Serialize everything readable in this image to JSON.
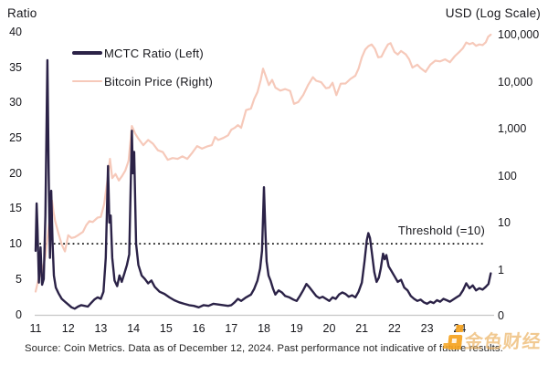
{
  "header": {
    "left_axis_title": "Ratio",
    "right_axis_title": "USD (Log Scale)"
  },
  "legend": [
    {
      "label": "MCTC Ratio (Left)",
      "color": "#2b2247",
      "thickness": 3.5
    },
    {
      "label": "Bitcoin Price (Right)",
      "color": "#f6c9ba",
      "thickness": 2.5
    }
  ],
  "threshold_annotation": "Threshold (=10)",
  "footer": {
    "source_note": "Source: Coin Metrics. Data as of December 12, 2024. Past performance not indicative of future results."
  },
  "watermark": {
    "text": "金色财经",
    "logo_color": "#f5a31f"
  },
  "colors": {
    "ratio_line": "#2b2247",
    "btc_line": "#f6c9ba",
    "baseline": "#c6c6c6",
    "threshold": "#141414",
    "text": "#17171c"
  },
  "chart_data": {
    "type": "line",
    "title": "",
    "x_axis": {
      "tick_labels": [
        "11",
        "12",
        "13",
        "14",
        "15",
        "16",
        "17",
        "18",
        "19",
        "20",
        "21",
        "22",
        "23",
        "24"
      ],
      "range_years": [
        2011,
        2025
      ]
    },
    "left_axis": {
      "title": "Ratio",
      "ticks": [
        40,
        35,
        30,
        25,
        20,
        15,
        10,
        5,
        0
      ],
      "range": [
        0,
        40
      ]
    },
    "right_axis": {
      "title": "USD (Log Scale)",
      "scale": "log",
      "tick_labels": [
        "100,000",
        "10,000",
        "1,000",
        "100",
        "10",
        "1",
        "0"
      ]
    },
    "threshold": {
      "value": 10,
      "label": "Threshold (=10)"
    },
    "grid": "off",
    "legend_position": "top-left",
    "series": [
      {
        "name": "MCTC Ratio (Left)",
        "axis": "left",
        "color": "#2b2247",
        "points": [
          [
            11.0,
            9
          ],
          [
            11.03,
            15.7
          ],
          [
            11.06,
            12
          ],
          [
            11.1,
            4.5
          ],
          [
            11.15,
            9.5
          ],
          [
            11.2,
            4.2
          ],
          [
            11.25,
            5
          ],
          [
            11.3,
            14
          ],
          [
            11.36,
            36
          ],
          [
            11.4,
            20
          ],
          [
            11.44,
            8
          ],
          [
            11.48,
            17.5
          ],
          [
            11.52,
            10
          ],
          [
            11.56,
            5.5
          ],
          [
            11.62,
            3.8
          ],
          [
            11.7,
            3
          ],
          [
            11.8,
            2.2
          ],
          [
            11.9,
            1.8
          ],
          [
            12.0,
            1.4
          ],
          [
            12.1,
            1.0
          ],
          [
            12.2,
            0.8
          ],
          [
            12.3,
            1.1
          ],
          [
            12.4,
            1.3
          ],
          [
            12.5,
            1.2
          ],
          [
            12.6,
            1.1
          ],
          [
            12.7,
            1.6
          ],
          [
            12.8,
            2.1
          ],
          [
            12.9,
            2.4
          ],
          [
            13.0,
            2.2
          ],
          [
            13.08,
            3.2
          ],
          [
            13.15,
            8
          ],
          [
            13.22,
            21
          ],
          [
            13.26,
            13
          ],
          [
            13.3,
            14
          ],
          [
            13.35,
            8
          ],
          [
            13.42,
            4.8
          ],
          [
            13.5,
            4
          ],
          [
            13.57,
            5.5
          ],
          [
            13.64,
            4.6
          ],
          [
            13.72,
            5.8
          ],
          [
            13.8,
            7
          ],
          [
            13.87,
            8.5
          ],
          [
            13.95,
            26
          ],
          [
            13.98,
            20
          ],
          [
            14.02,
            23
          ],
          [
            14.08,
            10
          ],
          [
            14.15,
            7
          ],
          [
            14.25,
            5.5
          ],
          [
            14.35,
            5
          ],
          [
            14.45,
            4.4
          ],
          [
            14.55,
            4.8
          ],
          [
            14.65,
            3.9
          ],
          [
            14.8,
            3.2
          ],
          [
            14.95,
            2.9
          ],
          [
            15.1,
            2.4
          ],
          [
            15.25,
            2.0
          ],
          [
            15.4,
            1.7
          ],
          [
            15.55,
            1.5
          ],
          [
            15.7,
            1.3
          ],
          [
            15.85,
            1.2
          ],
          [
            16.0,
            1.0
          ],
          [
            16.15,
            1.3
          ],
          [
            16.3,
            1.2
          ],
          [
            16.45,
            1.5
          ],
          [
            16.6,
            1.4
          ],
          [
            16.75,
            1.3
          ],
          [
            16.9,
            1.2
          ],
          [
            17.0,
            1.3
          ],
          [
            17.1,
            1.7
          ],
          [
            17.2,
            2.2
          ],
          [
            17.3,
            1.9
          ],
          [
            17.45,
            2.4
          ],
          [
            17.6,
            2.8
          ],
          [
            17.7,
            3.6
          ],
          [
            17.8,
            4.8
          ],
          [
            17.88,
            6.5
          ],
          [
            17.94,
            9
          ],
          [
            18.0,
            18
          ],
          [
            18.04,
            12
          ],
          [
            18.08,
            7.5
          ],
          [
            18.14,
            5.5
          ],
          [
            18.2,
            4.8
          ],
          [
            18.28,
            3.6
          ],
          [
            18.35,
            2.8
          ],
          [
            18.45,
            3.4
          ],
          [
            18.55,
            3.1
          ],
          [
            18.65,
            2.6
          ],
          [
            18.78,
            2.4
          ],
          [
            18.9,
            2.1
          ],
          [
            19.0,
            1.9
          ],
          [
            19.1,
            2.6
          ],
          [
            19.2,
            3.4
          ],
          [
            19.3,
            4.3
          ],
          [
            19.4,
            3.8
          ],
          [
            19.5,
            3.2
          ],
          [
            19.6,
            2.6
          ],
          [
            19.7,
            2.3
          ],
          [
            19.8,
            2.5
          ],
          [
            19.9,
            2.2
          ],
          [
            20.0,
            1.9
          ],
          [
            20.1,
            2.4
          ],
          [
            20.2,
            2.2
          ],
          [
            20.3,
            2.8
          ],
          [
            20.4,
            3.1
          ],
          [
            20.5,
            2.9
          ],
          [
            20.6,
            2.5
          ],
          [
            20.7,
            2.7
          ],
          [
            20.8,
            2.4
          ],
          [
            20.9,
            3.2
          ],
          [
            21.0,
            4.5
          ],
          [
            21.08,
            7.5
          ],
          [
            21.15,
            10.5
          ],
          [
            21.2,
            11.5
          ],
          [
            21.25,
            10.8
          ],
          [
            21.3,
            9
          ],
          [
            21.38,
            6
          ],
          [
            21.45,
            4.6
          ],
          [
            21.52,
            5.2
          ],
          [
            21.58,
            6.5
          ],
          [
            21.65,
            8.6
          ],
          [
            21.7,
            7.8
          ],
          [
            21.75,
            8.4
          ],
          [
            21.82,
            6.8
          ],
          [
            21.9,
            6.2
          ],
          [
            22.0,
            5.4
          ],
          [
            22.1,
            4.6
          ],
          [
            22.2,
            4.9
          ],
          [
            22.3,
            3.8
          ],
          [
            22.4,
            3.4
          ],
          [
            22.5,
            2.6
          ],
          [
            22.6,
            2.2
          ],
          [
            22.7,
            1.9
          ],
          [
            22.8,
            2.1
          ],
          [
            22.9,
            1.7
          ],
          [
            23.0,
            1.5
          ],
          [
            23.1,
            1.8
          ],
          [
            23.2,
            1.6
          ],
          [
            23.3,
            2.0
          ],
          [
            23.4,
            1.8
          ],
          [
            23.5,
            2.2
          ],
          [
            23.6,
            2.0
          ],
          [
            23.7,
            1.8
          ],
          [
            23.8,
            2.1
          ],
          [
            23.9,
            2.4
          ],
          [
            24.0,
            2.7
          ],
          [
            24.1,
            3.4
          ],
          [
            24.2,
            4.4
          ],
          [
            24.3,
            3.7
          ],
          [
            24.4,
            4.1
          ],
          [
            24.5,
            3.4
          ],
          [
            24.6,
            3.7
          ],
          [
            24.7,
            3.5
          ],
          [
            24.8,
            3.9
          ],
          [
            24.88,
            4.3
          ],
          [
            24.95,
            5.8
          ]
        ]
      },
      {
        "name": "Bitcoin Price (Right)",
        "axis": "right",
        "color": "#f6c9ba",
        "points": [
          [
            11.0,
            0.35
          ],
          [
            11.1,
            0.7
          ],
          [
            11.2,
            0.9
          ],
          [
            11.3,
            2
          ],
          [
            11.4,
            8
          ],
          [
            11.5,
            30
          ],
          [
            11.55,
            17
          ],
          [
            11.6,
            11
          ],
          [
            11.7,
            6
          ],
          [
            11.8,
            3.5
          ],
          [
            11.9,
            2.5
          ],
          [
            12.0,
            5.5
          ],
          [
            12.1,
            4.8
          ],
          [
            12.2,
            5.0
          ],
          [
            12.3,
            5.5
          ],
          [
            12.45,
            6.5
          ],
          [
            12.55,
            9
          ],
          [
            12.65,
            11
          ],
          [
            12.75,
            10.5
          ],
          [
            12.9,
            13
          ],
          [
            13.0,
            13.5
          ],
          [
            13.1,
            25
          ],
          [
            13.2,
            80
          ],
          [
            13.28,
            230
          ],
          [
            13.35,
            90
          ],
          [
            13.45,
            110
          ],
          [
            13.55,
            80
          ],
          [
            13.65,
            100
          ],
          [
            13.75,
            130
          ],
          [
            13.85,
            210
          ],
          [
            13.95,
            1150
          ],
          [
            14.05,
            800
          ],
          [
            14.15,
            620
          ],
          [
            14.3,
            450
          ],
          [
            14.45,
            580
          ],
          [
            14.6,
            480
          ],
          [
            14.75,
            350
          ],
          [
            14.9,
            320
          ],
          [
            15.05,
            220
          ],
          [
            15.2,
            240
          ],
          [
            15.35,
            230
          ],
          [
            15.5,
            260
          ],
          [
            15.65,
            230
          ],
          [
            15.8,
            310
          ],
          [
            15.95,
            430
          ],
          [
            16.1,
            380
          ],
          [
            16.25,
            420
          ],
          [
            16.4,
            450
          ],
          [
            16.5,
            670
          ],
          [
            16.6,
            580
          ],
          [
            16.75,
            640
          ],
          [
            16.9,
            730
          ],
          [
            17.0,
            960
          ],
          [
            17.1,
            1050
          ],
          [
            17.2,
            1200
          ],
          [
            17.3,
            1050
          ],
          [
            17.45,
            2500
          ],
          [
            17.6,
            2700
          ],
          [
            17.7,
            4300
          ],
          [
            17.8,
            6000
          ],
          [
            17.9,
            11000
          ],
          [
            17.97,
            19000
          ],
          [
            18.05,
            13500
          ],
          [
            18.15,
            8500
          ],
          [
            18.25,
            11000
          ],
          [
            18.35,
            7500
          ],
          [
            18.5,
            6500
          ],
          [
            18.65,
            7000
          ],
          [
            18.8,
            6400
          ],
          [
            18.92,
            3400
          ],
          [
            19.05,
            3700
          ],
          [
            19.2,
            5200
          ],
          [
            19.35,
            8500
          ],
          [
            19.5,
            12500
          ],
          [
            19.6,
            10500
          ],
          [
            19.75,
            9800
          ],
          [
            19.9,
            7300
          ],
          [
            20.0,
            7500
          ],
          [
            20.1,
            9500
          ],
          [
            20.22,
            5200
          ],
          [
            20.35,
            9100
          ],
          [
            20.5,
            9200
          ],
          [
            20.65,
            11500
          ],
          [
            20.8,
            13500
          ],
          [
            20.9,
            19000
          ],
          [
            21.0,
            33000
          ],
          [
            21.1,
            48000
          ],
          [
            21.2,
            57000
          ],
          [
            21.3,
            62000
          ],
          [
            21.4,
            50000
          ],
          [
            21.5,
            33000
          ],
          [
            21.6,
            34000
          ],
          [
            21.7,
            47000
          ],
          [
            21.8,
            62000
          ],
          [
            21.88,
            66000
          ],
          [
            22.0,
            43000
          ],
          [
            22.1,
            38000
          ],
          [
            22.2,
            45000
          ],
          [
            22.35,
            38000
          ],
          [
            22.45,
            30000
          ],
          [
            22.55,
            20000
          ],
          [
            22.7,
            23000
          ],
          [
            22.8,
            19500
          ],
          [
            22.95,
            16200
          ],
          [
            23.1,
            23000
          ],
          [
            23.25,
            28000
          ],
          [
            23.4,
            27000
          ],
          [
            23.55,
            30000
          ],
          [
            23.7,
            26000
          ],
          [
            23.85,
            35000
          ],
          [
            24.0,
            44000
          ],
          [
            24.1,
            52000
          ],
          [
            24.2,
            68000
          ],
          [
            24.3,
            63000
          ],
          [
            24.4,
            67000
          ],
          [
            24.5,
            58000
          ],
          [
            24.6,
            62000
          ],
          [
            24.7,
            60000
          ],
          [
            24.8,
            69000
          ],
          [
            24.87,
            90000
          ],
          [
            24.95,
            100000
          ]
        ]
      }
    ]
  }
}
